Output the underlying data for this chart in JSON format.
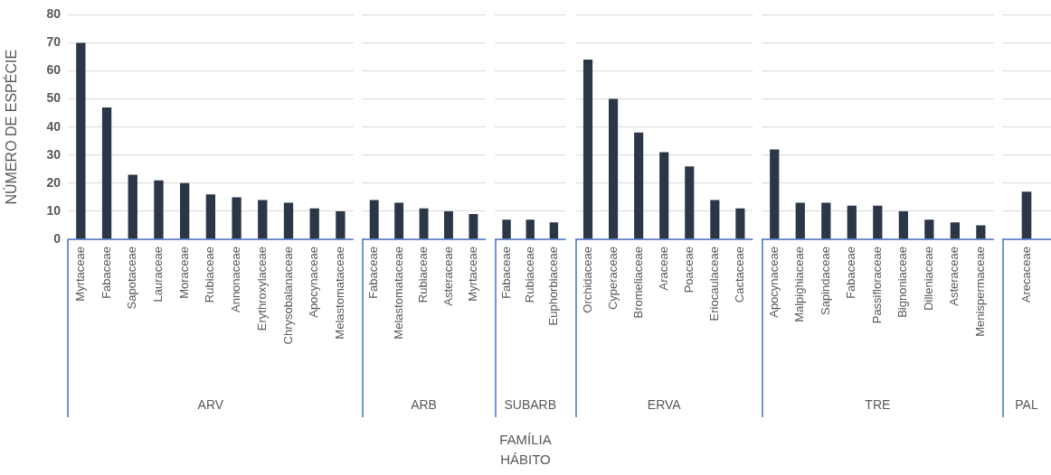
{
  "chart_data": [
    {
      "type": "bar",
      "categories": [
        "Myrtaceae",
        "Fabaceae",
        "Sapotaceae",
        "Lauraceae",
        "Moraceae",
        "Rubiaceae",
        "Annonaceae",
        "Erythroxylaceae",
        "Chrysobalanaceae",
        "Apocynaceae",
        "Melastomataceae"
      ],
      "values": [
        70,
        47,
        23,
        21,
        20,
        16,
        15,
        14,
        13,
        11,
        10
      ],
      "color": "#2b3647",
      "ylim": [
        0,
        80
      ],
      "yticks": [
        0,
        10,
        20,
        30,
        40,
        50,
        60,
        70,
        80
      ],
      "grid": "y",
      "ylabel": "NÚMERO DE ESPÉCIE",
      "xlabel": "ARV"
    },
    {
      "type": "bar",
      "categories": [
        "Fabaceae",
        "Melastomataceae",
        "Rubiaceae",
        "Asteraceae",
        "Myrtaceae"
      ],
      "values": [
        14,
        13,
        11,
        10,
        9
      ],
      "color": "#2b3647",
      "ylim": [
        0,
        80
      ],
      "yticks": [
        0,
        10,
        20,
        30,
        40,
        50,
        60,
        70,
        80
      ],
      "grid": "y",
      "xlabel": "ARB",
      "tick_labels": "x"
    },
    {
      "type": "bar",
      "categories": [
        "Fabaceae",
        "Rubiaceae",
        "Euphorbiaceae"
      ],
      "values": [
        7,
        7,
        6
      ],
      "color": "#2b3647",
      "ylim": [
        0,
        80
      ],
      "yticks": [
        0,
        10,
        20,
        30,
        40,
        50,
        60,
        70,
        80
      ],
      "grid": "y",
      "xlabel": "SUBARB",
      "tick_labels": "x",
      "annotations": [
        "FAMÍLIA",
        "HÁBITO"
      ]
    },
    {
      "type": "bar",
      "categories": [
        "Orchidaceae",
        "Cyperaceae",
        "Bromeliaceae",
        "Araceae",
        "Poaceae",
        "Eriocaulaceae",
        "Cactaceae"
      ],
      "values": [
        64,
        50,
        38,
        31,
        26,
        14,
        11
      ],
      "color": "#2b3647",
      "ylim": [
        0,
        80
      ],
      "yticks": [
        0,
        10,
        20,
        30,
        40,
        50,
        60,
        70,
        80
      ],
      "grid": "y",
      "xlabel": "ERVA",
      "tick_labels": "x"
    },
    {
      "type": "bar",
      "categories": [
        "Apocynaceae",
        "Malpighiaceae",
        "Sapindaceae",
        "Fabaceae",
        "Passifloraceae",
        "Bignoniaceae",
        "Dilleniaceae",
        "Asteraceae",
        "Menispermaceae"
      ],
      "values": [
        32,
        13,
        13,
        12,
        12,
        10,
        7,
        6,
        5
      ],
      "color": "#2b3647",
      "ylim": [
        0,
        80
      ],
      "yticks": [
        0,
        10,
        20,
        30,
        40,
        50,
        60,
        70,
        80
      ],
      "grid": "y",
      "xlabel": "TRE",
      "tick_labels": "x"
    },
    {
      "type": "bar",
      "categories": [
        "Arecaceae"
      ],
      "values": [
        17
      ],
      "color": "#2b3647",
      "ylim": [
        0,
        80
      ],
      "yticks": [
        0,
        10,
        20,
        30,
        40,
        50,
        60,
        70,
        80
      ],
      "grid": "y",
      "xlabel": "PAL",
      "tick_labels": "x"
    }
  ]
}
